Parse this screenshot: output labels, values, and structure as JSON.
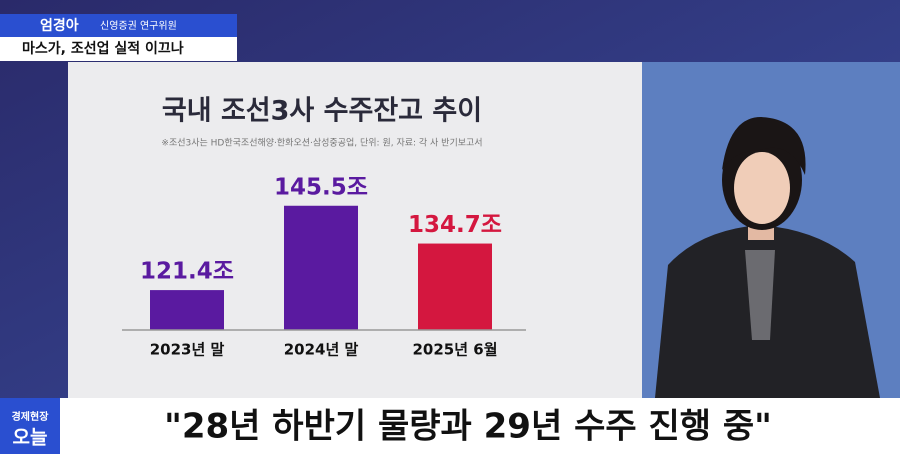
{
  "header": {
    "name": "엄경아",
    "affiliation": "신영증권 연구위원",
    "topic": "마스가, 조선업 실적 이끄나"
  },
  "caption": {
    "logo_top": "경제현장",
    "logo_bottom": "오늘",
    "quote": "\"28년 하반기 물량과 29년 수주 진행 중\""
  },
  "chart_data": {
    "type": "bar",
    "title": "국내 조선3사 수주잔고 추이",
    "subtitle": "※조선3사는 HD한국조선해양·한화오션·삼성중공업, 단위: 원, 자료: 각 사 반기보고서",
    "categories": [
      "2023년 말",
      "2024년 말",
      "2025년 6월"
    ],
    "values": [
      121.4,
      145.5,
      134.7
    ],
    "value_labels": [
      "121.4조",
      "145.5조",
      "134.7조"
    ],
    "colors": [
      "#5a1aa0",
      "#5a1aa0",
      "#d4173f"
    ],
    "ylim": [
      110,
      150
    ]
  }
}
